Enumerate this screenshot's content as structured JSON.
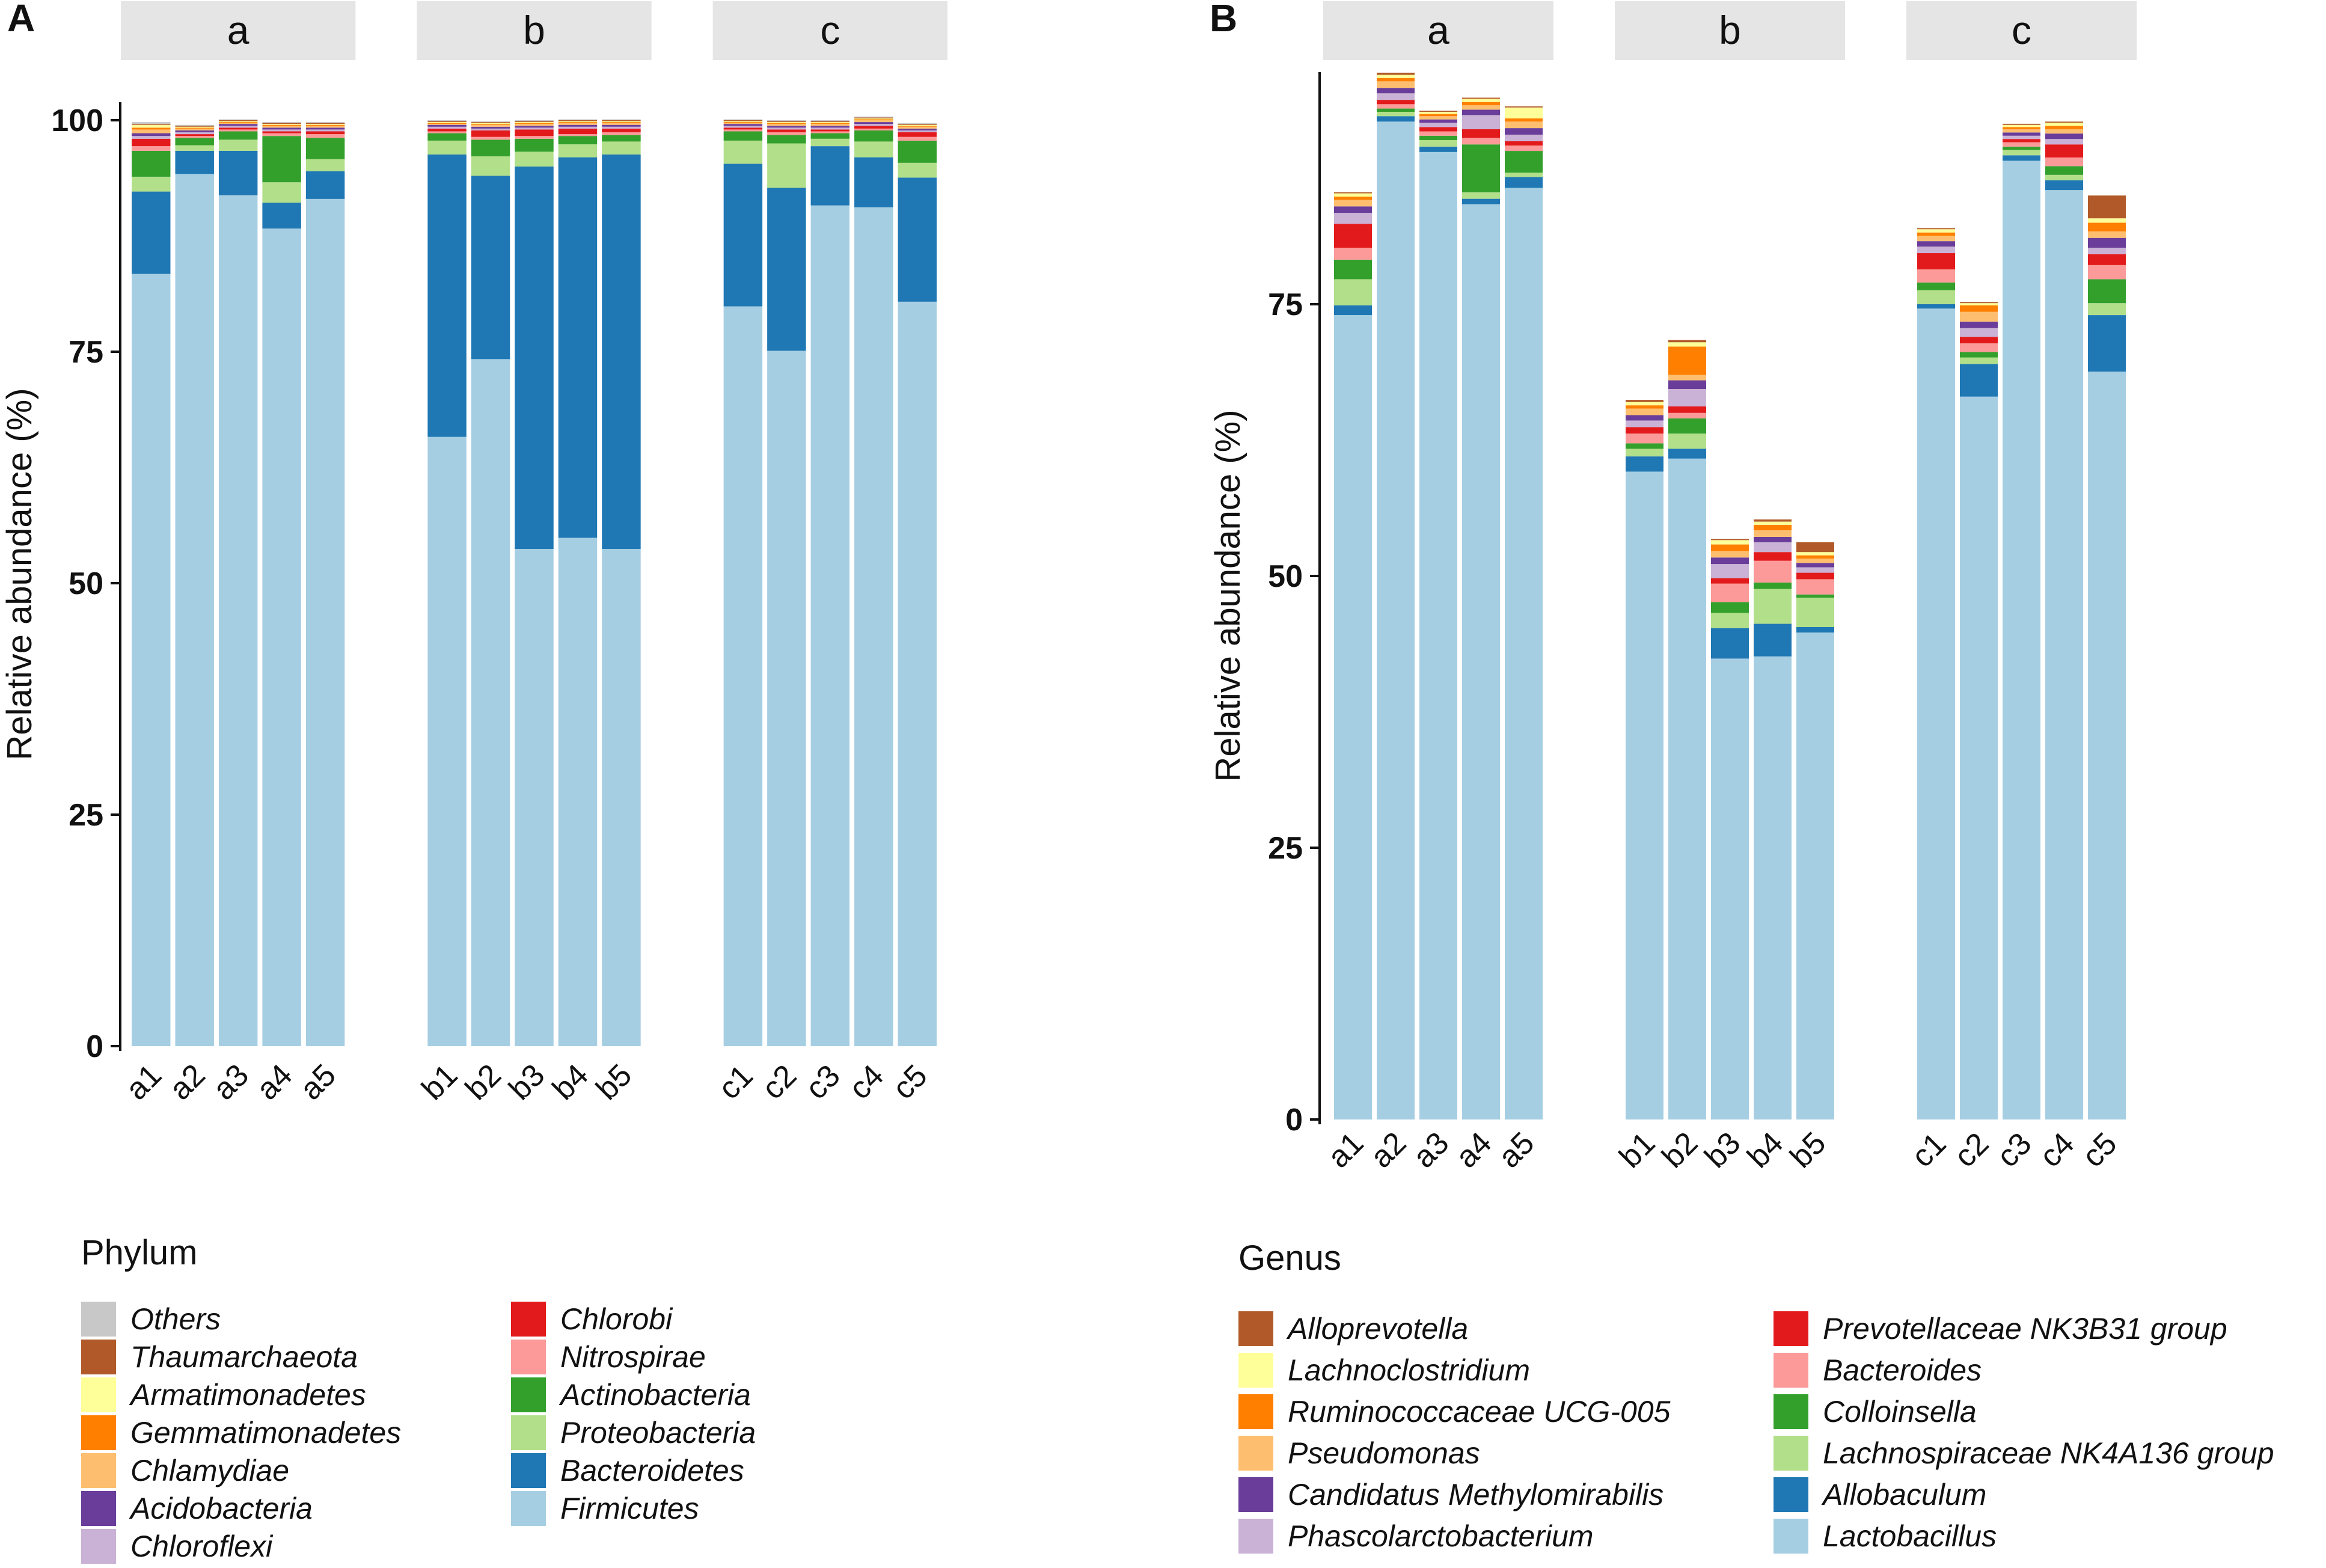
{
  "palette": {
    "Others": "#c8c8c8",
    "Thaumarchaeota": "#b15928",
    "Armatimonadetes": "#ffff99",
    "Gemmatimonadetes": "#ff7f00",
    "Chlamydiae": "#fdbf6f",
    "Acidobacteria": "#6a3d9a",
    "Chloroflexi": "#cab2d6",
    "Chlorobi": "#e31a1c",
    "Nitrospirae": "#fb9a99",
    "Actinobacteria": "#33a02c",
    "Proteobacteria": "#b2df8a",
    "Bacteroidetes": "#1f78b4",
    "Firmicutes": "#a6cee3",
    "Alloprevotella": "#b15928",
    "Lachnoclostridium": "#ffff99",
    "Ruminococcaceae UCG-005": "#ff7f00",
    "Pseudomonas": "#fdbf6f",
    "Candidatus Methylomirabilis": "#6a3d9a",
    "Phascolarctobacterium": "#cab2d6",
    "Prevotellaceae NK3B31 group": "#e31a1c",
    "Bacteroides": "#fb9a99",
    "Colloinsella": "#33a02c",
    "Lachnospiraceae NK4A136 group": "#b2df8a",
    "Allobaculum": "#1f78b4",
    "Lactobacillus": "#a6cee3"
  },
  "chart_data": [
    {
      "panel": "A",
      "type": "bar",
      "stacked": true,
      "ylabel": "Relative abundance (%)",
      "ylim": [
        0,
        100
      ],
      "yticks": [
        "0",
        "25",
        "50",
        "75",
        "100"
      ],
      "facets": [
        "a",
        "b",
        "c"
      ],
      "categories": [
        "a1",
        "a2",
        "a3",
        "a4",
        "a5",
        "b1",
        "b2",
        "b3",
        "b4",
        "b5",
        "c1",
        "c2",
        "c3",
        "c4",
        "c5"
      ],
      "legend_title": "Phylum",
      "legend": [
        "Others",
        "Thaumarchaeota",
        "Armatimonadetes",
        "Gemmatimonadetes",
        "Chlamydiae",
        "Acidobacteria",
        "Chloroflexi",
        "Chlorobi",
        "Nitrospirae",
        "Actinobacteria",
        "Proteobacteria",
        "Bacteroidetes",
        "Firmicutes"
      ],
      "series": [
        {
          "name": "Firmicutes",
          "values": [
            83.4,
            94.2,
            91.9,
            88.3,
            91.5,
            65.8,
            74.2,
            53.7,
            54.9,
            53.7,
            79.9,
            75.1,
            90.8,
            90.6,
            80.4
          ]
        },
        {
          "name": "Bacteroidetes",
          "values": [
            8.9,
            2.5,
            4.8,
            2.8,
            3.0,
            30.5,
            19.8,
            41.3,
            41.1,
            42.6,
            15.4,
            17.6,
            6.4,
            5.4,
            13.4
          ]
        },
        {
          "name": "Proteobacteria",
          "values": [
            1.6,
            0.6,
            1.2,
            2.2,
            1.3,
            1.5,
            2.1,
            1.6,
            1.4,
            1.4,
            2.5,
            4.8,
            0.8,
            1.7,
            1.6
          ]
        },
        {
          "name": "Actinobacteria",
          "values": [
            2.8,
            0.8,
            0.9,
            5.0,
            2.3,
            0.8,
            1.8,
            1.4,
            0.9,
            0.7,
            1.0,
            0.9,
            0.6,
            1.2,
            2.4
          ]
        },
        {
          "name": "Nitrospirae",
          "values": [
            0.5,
            0.2,
            0.2,
            0.3,
            0.4,
            0.2,
            0.3,
            0.3,
            0.2,
            0.3,
            0.2,
            0.3,
            0.2,
            0.2,
            0.4
          ]
        },
        {
          "name": "Chlorobi",
          "values": [
            0.8,
            0.2,
            0.2,
            0.2,
            0.3,
            0.3,
            0.7,
            0.7,
            0.6,
            0.4,
            0.2,
            0.3,
            0.2,
            0.3,
            0.5
          ]
        },
        {
          "name": "Chloroflexi",
          "values": [
            0.3,
            0.2,
            0.2,
            0.2,
            0.2,
            0.2,
            0.2,
            0.2,
            0.2,
            0.2,
            0.2,
            0.2,
            0.2,
            0.2,
            0.2
          ]
        },
        {
          "name": "Acidobacteria",
          "values": [
            0.3,
            0.2,
            0.2,
            0.2,
            0.2,
            0.2,
            0.2,
            0.2,
            0.2,
            0.2,
            0.2,
            0.2,
            0.2,
            0.2,
            0.2
          ]
        },
        {
          "name": "Chlamydiae",
          "values": [
            0.4,
            0.2,
            0.1,
            0.2,
            0.2,
            0.1,
            0.2,
            0.2,
            0.2,
            0.2,
            0.1,
            0.2,
            0.2,
            0.2,
            0.2
          ]
        },
        {
          "name": "Gemmatimonadetes",
          "values": [
            0.2,
            0.1,
            0.1,
            0.1,
            0.1,
            0.1,
            0.1,
            0.1,
            0.1,
            0.1,
            0.1,
            0.1,
            0.1,
            0.1,
            0.1
          ]
        },
        {
          "name": "Armatimonadetes",
          "values": [
            0.3,
            0.1,
            0.1,
            0.1,
            0.1,
            0.1,
            0.1,
            0.1,
            0.1,
            0.1,
            0.1,
            0.1,
            0.1,
            0.1,
            0.1
          ]
        },
        {
          "name": "Thaumarchaeota",
          "values": [
            0.1,
            0.1,
            0.1,
            0.1,
            0.1,
            0.1,
            0.1,
            0.1,
            0.1,
            0.1,
            0.1,
            0.1,
            0.1,
            0.1,
            0.1
          ]
        },
        {
          "name": "Others",
          "values": [
            0.2,
            0.1,
            0.1,
            0.1,
            0.1,
            0.1,
            0.1,
            0.1,
            0.1,
            0.1,
            0.1,
            0.1,
            0.1,
            0.1,
            0.1
          ]
        }
      ]
    },
    {
      "panel": "B",
      "type": "bar",
      "stacked": true,
      "ylabel": "Relative abundance (%)",
      "ylim": [
        0,
        97
      ],
      "yticks": [
        "0",
        "25",
        "50",
        "75"
      ],
      "facets": [
        "a",
        "b",
        "c"
      ],
      "categories": [
        "a1",
        "a2",
        "a3",
        "a4",
        "a5",
        "b1",
        "b2",
        "b3",
        "b4",
        "b5",
        "c1",
        "c2",
        "c3",
        "c4",
        "c5"
      ],
      "legend_title": "Genus",
      "legend": [
        "Alloprevotella",
        "Lachnoclostridium",
        "Ruminococcaceae UCG-005",
        "Pseudomonas",
        "Candidatus Methylomirabilis",
        "Phascolarctobacterium",
        "Prevotellaceae NK3B31 group",
        "Bacteroides",
        "Colloinsella",
        "Lachnospiraceae NK4A136 group",
        "Allobaculum",
        "Lactobacillus"
      ],
      "series": [
        {
          "name": "Lactobacillus",
          "values": [
            74.0,
            91.8,
            89.0,
            84.2,
            85.7,
            59.6,
            60.8,
            42.4,
            42.6,
            44.8,
            74.6,
            66.5,
            88.2,
            85.5,
            68.8
          ]
        },
        {
          "name": "Allobaculum",
          "values": [
            0.9,
            0.5,
            0.5,
            0.5,
            1.0,
            1.4,
            0.9,
            2.8,
            3.0,
            0.5,
            0.4,
            3.0,
            0.5,
            0.9,
            5.2
          ]
        },
        {
          "name": "Lachnospiraceae NK4A136 group",
          "values": [
            2.4,
            0.4,
            0.6,
            0.6,
            0.4,
            0.7,
            1.4,
            1.4,
            3.2,
            2.7,
            1.3,
            0.6,
            0.5,
            0.5,
            1.1
          ]
        },
        {
          "name": "Colloinsella",
          "values": [
            1.8,
            0.3,
            0.4,
            4.4,
            2.0,
            0.5,
            1.4,
            1.0,
            0.6,
            0.3,
            0.7,
            0.5,
            0.3,
            0.8,
            2.2
          ]
        },
        {
          "name": "Bacteroides",
          "values": [
            1.1,
            0.4,
            0.4,
            0.6,
            0.5,
            0.9,
            0.5,
            1.7,
            2.0,
            1.4,
            1.2,
            0.8,
            0.4,
            0.8,
            1.3
          ]
        },
        {
          "name": "Prevotellaceae NK3B31 group",
          "values": [
            2.2,
            0.4,
            0.4,
            0.8,
            0.4,
            0.6,
            0.6,
            0.5,
            0.8,
            0.6,
            1.5,
            0.6,
            0.3,
            1.2,
            1.0
          ]
        },
        {
          "name": "Phascolarctobacterium",
          "values": [
            1.0,
            0.6,
            0.4,
            1.3,
            0.6,
            0.6,
            1.6,
            1.3,
            0.9,
            0.5,
            0.6,
            0.8,
            0.3,
            0.5,
            0.6
          ]
        },
        {
          "name": "Candidatus Methylomirabilis",
          "values": [
            0.6,
            0.5,
            0.3,
            0.5,
            0.6,
            0.5,
            0.8,
            0.6,
            0.5,
            0.4,
            0.5,
            0.6,
            0.3,
            0.5,
            0.9
          ]
        },
        {
          "name": "Pseudomonas",
          "values": [
            0.6,
            0.6,
            0.3,
            0.4,
            0.6,
            0.6,
            0.5,
            0.6,
            0.6,
            0.4,
            0.5,
            0.9,
            0.3,
            0.4,
            0.6
          ]
        },
        {
          "name": "Ruminococcaceae UCG-005",
          "values": [
            0.3,
            0.3,
            0.2,
            0.3,
            0.3,
            0.3,
            2.6,
            0.6,
            0.5,
            0.3,
            0.3,
            0.6,
            0.2,
            0.3,
            0.8
          ]
        },
        {
          "name": "Lachnoclostridium",
          "values": [
            0.3,
            0.3,
            0.2,
            0.3,
            1.0,
            0.3,
            0.4,
            0.4,
            0.3,
            0.3,
            0.3,
            0.2,
            0.2,
            0.3,
            0.4
          ]
        },
        {
          "name": "Alloprevotella",
          "values": [
            0.1,
            0.2,
            0.1,
            0.1,
            0.1,
            0.2,
            0.2,
            0.1,
            0.2,
            0.9,
            0.1,
            0.1,
            0.1,
            0.1,
            2.1
          ]
        }
      ]
    }
  ]
}
